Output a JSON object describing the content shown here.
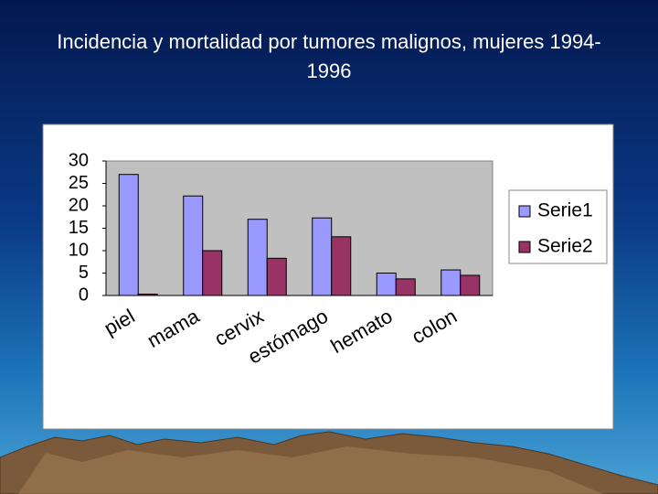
{
  "chart_data": {
    "type": "bar",
    "title": "Incidencia y mortalidad por tumores malignos, mujeres 1994-1996",
    "categories": [
      "piel",
      "mama",
      "cervix",
      "estómago",
      "hemato",
      "colon"
    ],
    "series": [
      {
        "name": "Serie1",
        "color": "#9999ff",
        "values": [
          27,
          22.2,
          17,
          17.3,
          5,
          5.7
        ]
      },
      {
        "name": "Serie2",
        "color": "#993366",
        "values": [
          0.3,
          10,
          8.3,
          13.1,
          3.7,
          4.5
        ]
      }
    ],
    "ylim": [
      0,
      30
    ],
    "yticks": [
      0,
      5,
      10,
      15,
      20,
      25,
      30
    ],
    "legend": "right"
  }
}
